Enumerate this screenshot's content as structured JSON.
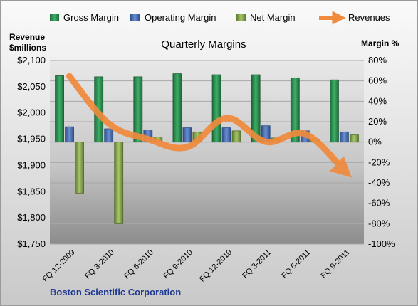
{
  "chart_data": {
    "type": "bar",
    "title": "Quarterly Margins",
    "left_axis_title_line1": "Revenue",
    "left_axis_title_line2": "$millions",
    "right_axis_title": "Margin %",
    "footer": "Boston Scientific Corporation",
    "categories": [
      "FQ 12-2009",
      "FQ 3-2010",
      "FQ 6-2010",
      "FQ 9-2010",
      "FQ 12-2010",
      "FQ 3-2011",
      "FQ 6-2011",
      "FQ 9-2011"
    ],
    "left_axis": {
      "min": 1750,
      "max": 2100,
      "step": 50,
      "ticks": [
        "$1,750",
        "$1,800",
        "$1,850",
        "$1,900",
        "$1,950",
        "$2,000",
        "$2,050",
        "$2,100"
      ]
    },
    "right_axis": {
      "min": -100,
      "max": 80,
      "step": 20,
      "ticks": [
        "-100%",
        "-80%",
        "-60%",
        "-40%",
        "-20%",
        "0%",
        "20%",
        "40%",
        "60%",
        "80%"
      ]
    },
    "series": [
      {
        "name": "Gross Margin",
        "type": "bar",
        "axis": "right",
        "color": "#2e8b57",
        "values": [
          65,
          64,
          64,
          67,
          66,
          66,
          63,
          61
        ]
      },
      {
        "name": "Operating Margin",
        "type": "bar",
        "axis": "right",
        "color": "#4a72b8",
        "values": [
          15,
          13,
          12,
          14,
          14,
          16,
          11,
          10
        ]
      },
      {
        "name": "Net Margin",
        "type": "bar",
        "axis": "right",
        "color": "#8db153",
        "values": [
          -50,
          -80,
          5,
          10,
          11,
          4,
          3,
          7
        ]
      },
      {
        "name": "Revenues",
        "type": "line",
        "axis": "left",
        "color": "#f08a3c",
        "values": [
          2070,
          1980,
          1950,
          1935,
          1990,
          1945,
          1960,
          1890
        ]
      }
    ],
    "grid": true,
    "legend_position": "top"
  }
}
